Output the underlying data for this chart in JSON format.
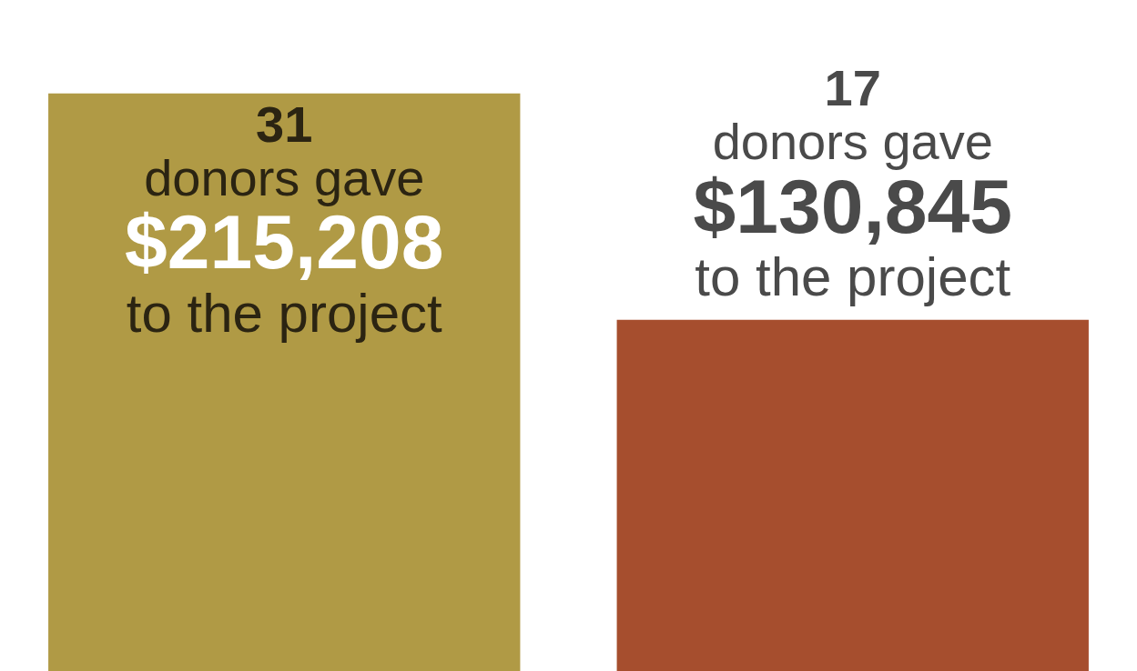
{
  "chart_data": {
    "type": "bar",
    "categories": [
      null,
      null
    ],
    "values": [
      215208,
      130845
    ],
    "colors": [
      "#b09a45",
      "#a64e2e"
    ],
    "value_labels": [
      "31\ndonors gave\n$215,208\nto the project",
      "17\ndonors gave\n$130,845\nto the project"
    ]
  }
}
